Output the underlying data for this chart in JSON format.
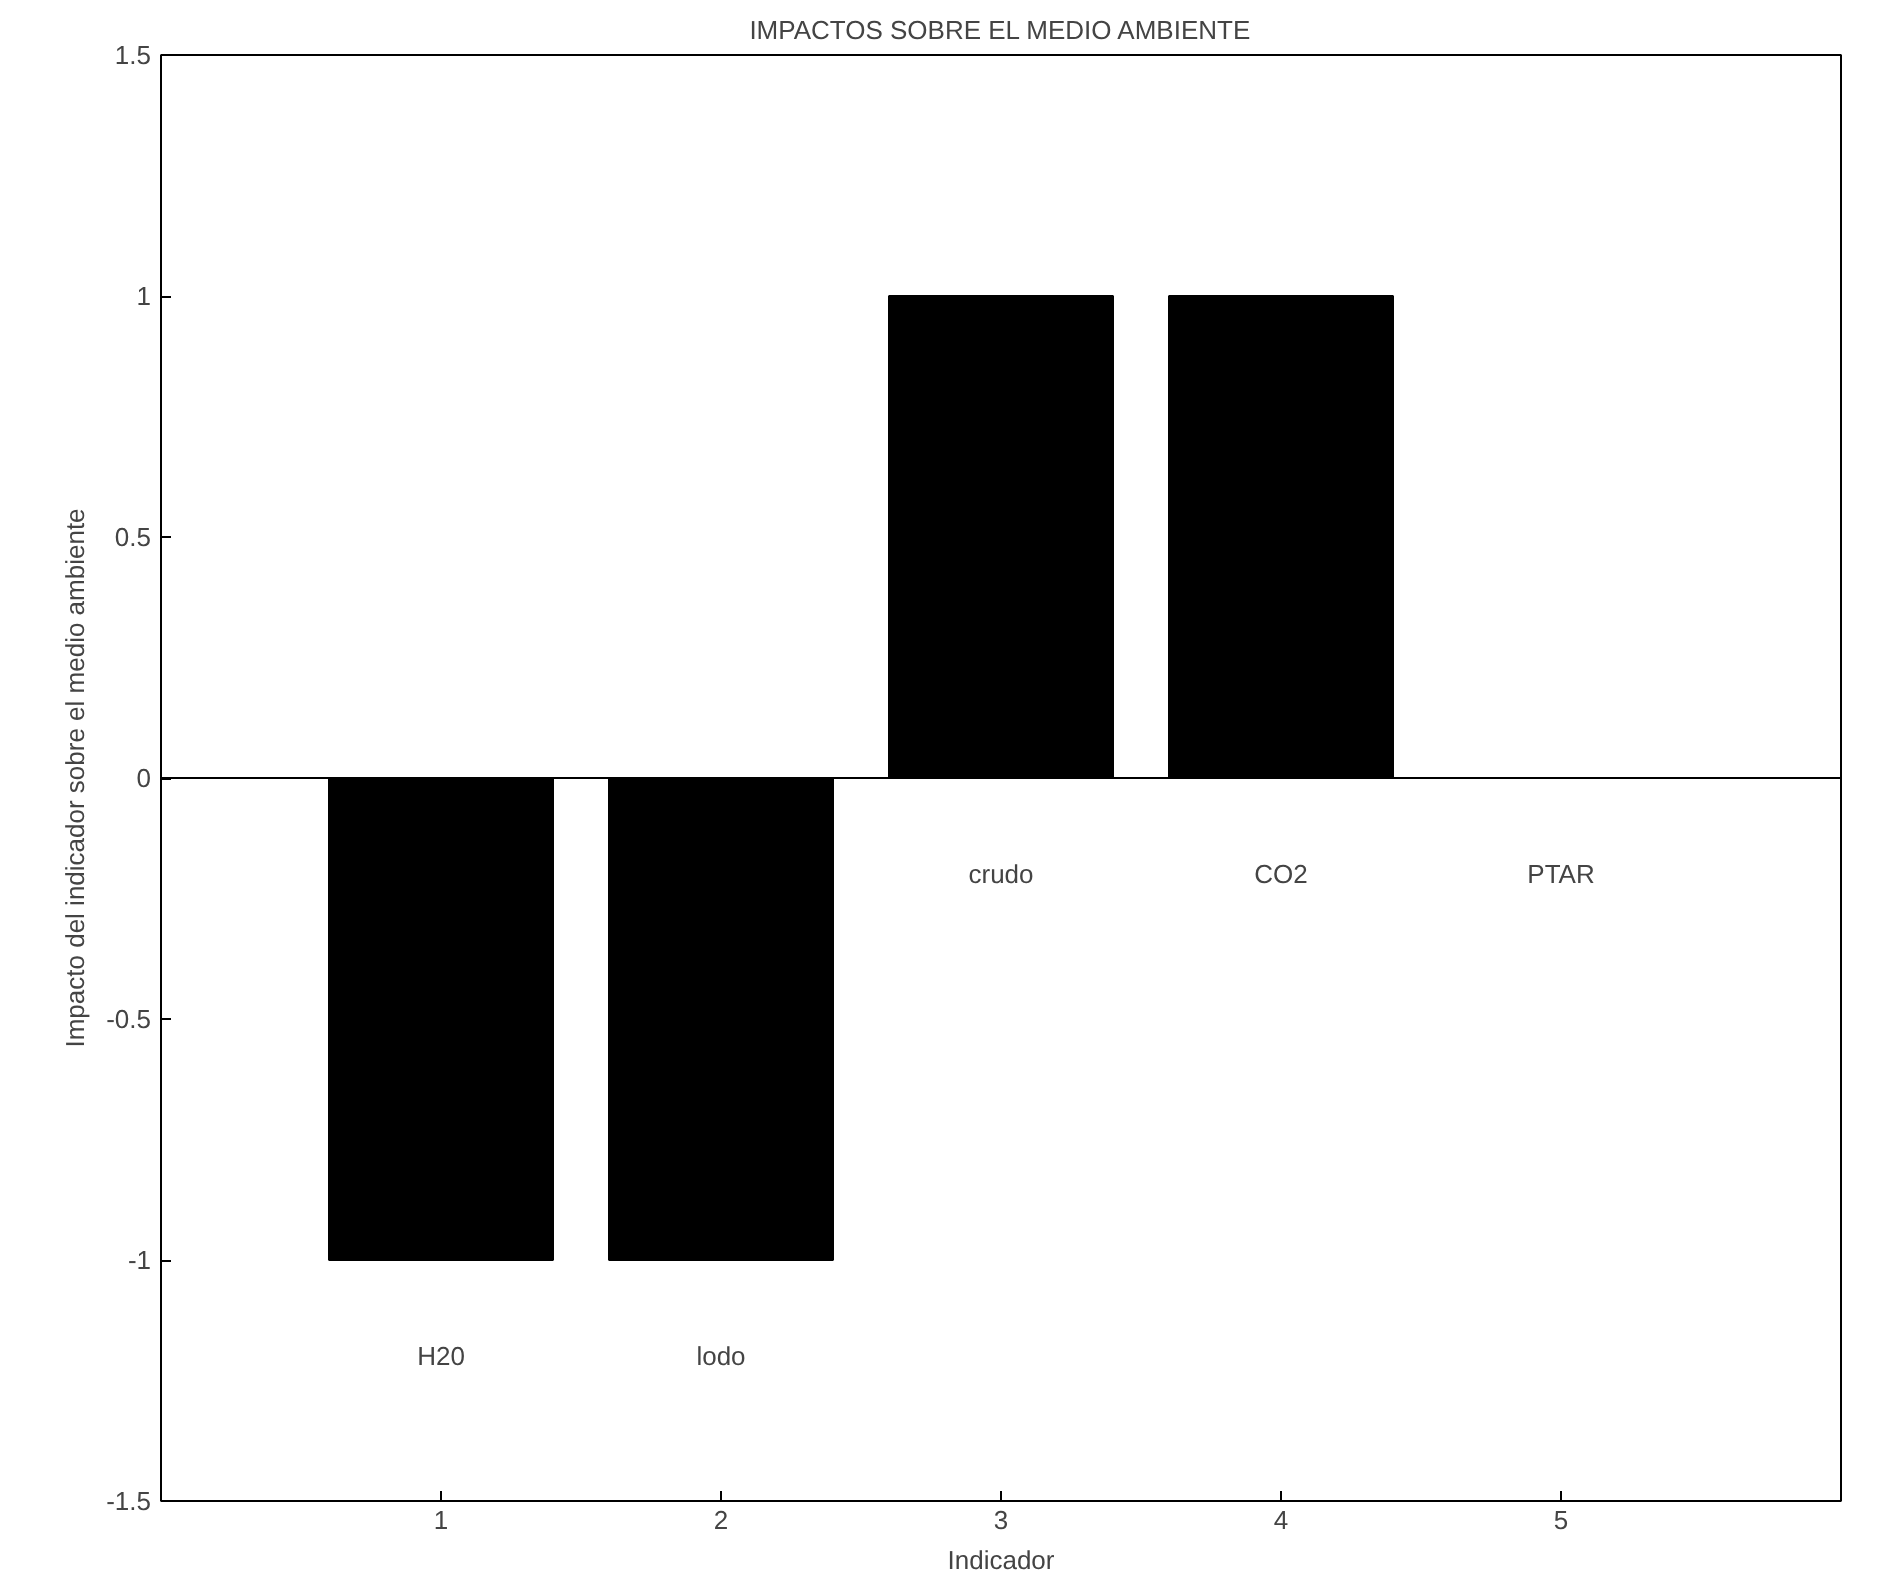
{
  "chart_data": {
    "type": "bar",
    "title": "IMPACTOS SOBRE EL MEDIO AMBIENTE",
    "xlabel": "Indicador",
    "ylabel": "Impacto del indicador sobre el medio ambiente",
    "x": [
      1,
      2,
      3,
      4,
      5
    ],
    "values": [
      -1,
      -1,
      1,
      1,
      0
    ],
    "color": "#000000",
    "xlim": [
      0,
      6
    ],
    "xticks": [
      1,
      2,
      3,
      4,
      5
    ],
    "ylim": [
      -1.5,
      1.5
    ],
    "yticks": [
      -1.5,
      -1,
      -0.5,
      0,
      0.5,
      1,
      1.5
    ],
    "grid": false,
    "ref_lines": [
      {
        "axis": "y",
        "value": 0,
        "color": "#000000"
      }
    ],
    "annotations": [
      "H20",
      "lodo",
      "crudo",
      "CO2",
      "PTAR"
    ]
  }
}
